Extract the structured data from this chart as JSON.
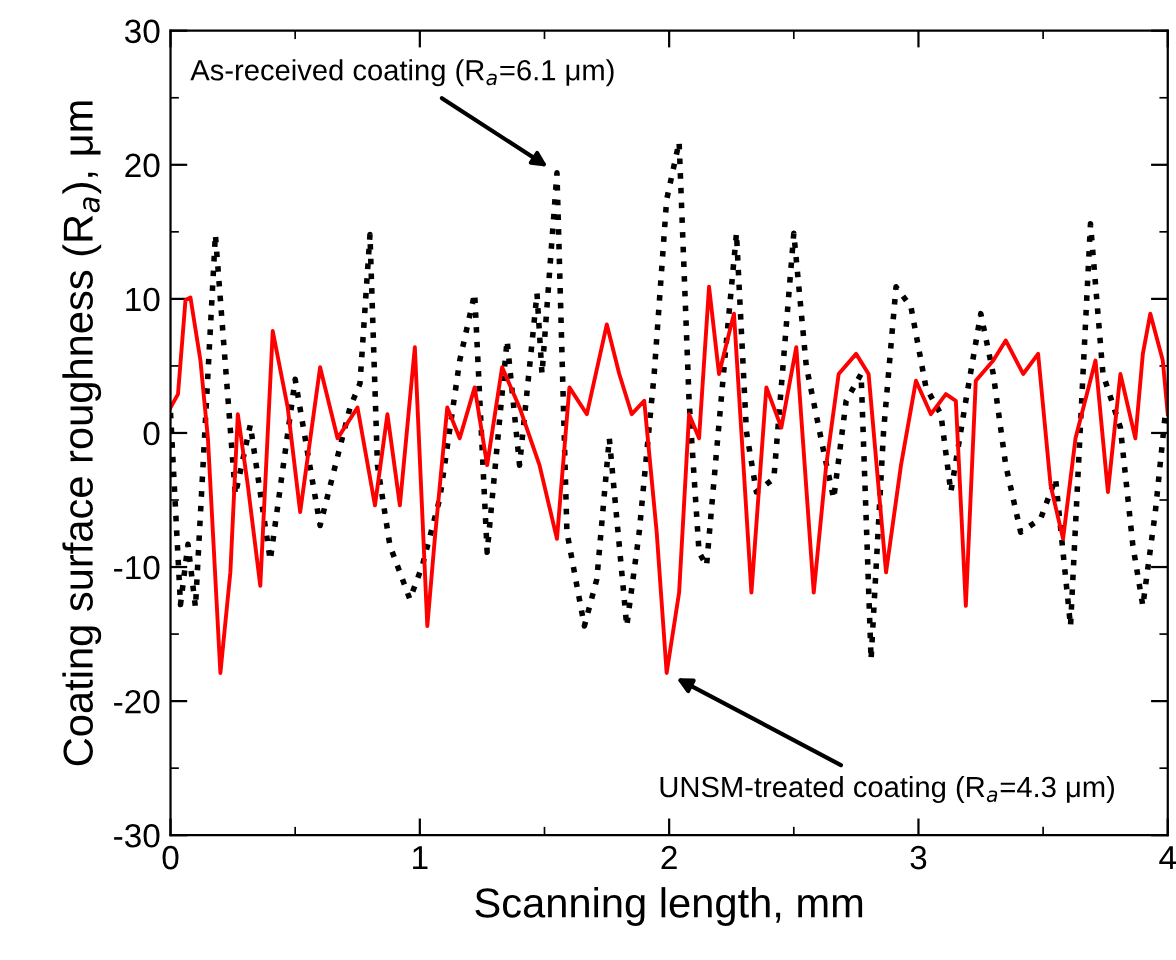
{
  "chart_data": {
    "type": "line",
    "xlabel": "Scanning length, mm",
    "ylabel": "Coating surface roughness (R$_{a}$), μm",
    "xlim": [
      0,
      4
    ],
    "ylim": [
      -30,
      30
    ],
    "xticks": [
      0,
      1,
      2,
      3,
      4
    ],
    "yticks": [
      -30,
      -20,
      -10,
      0,
      10,
      20,
      30
    ],
    "grid": false,
    "legend": false,
    "annotations": [
      {
        "text": "As-received coating (R$_{a}$=6.1 μm)",
        "x": 1.55,
        "y": 19.4
      },
      {
        "text": "UNSM-treated coating (R$_{a}$=4.3 μm)",
        "x": 1.99,
        "y": -17.9
      }
    ],
    "series": [
      {
        "color": "#000000",
        "line_style": "dotted",
        "x": [
          0.0,
          0.04,
          0.07,
          0.1,
          0.18,
          0.26,
          0.32,
          0.4,
          0.5,
          0.55,
          0.6,
          0.72,
          0.76,
          0.8,
          0.83,
          0.88,
          0.96,
          1.01,
          1.08,
          1.16,
          1.22,
          1.27,
          1.35,
          1.4,
          1.47,
          1.49,
          1.55,
          1.59,
          1.66,
          1.71,
          1.76,
          1.83,
          1.88,
          1.94,
          1.99,
          2.04,
          2.08,
          2.12,
          2.15,
          2.19,
          2.23,
          2.27,
          2.31,
          2.35,
          2.42,
          2.5,
          2.55,
          2.62,
          2.66,
          2.71,
          2.77,
          2.81,
          2.86,
          2.91,
          2.97,
          3.03,
          3.09,
          3.13,
          3.19,
          3.25,
          3.3,
          3.35,
          3.41,
          3.49,
          3.55,
          3.61,
          3.66,
          3.69,
          3.74,
          3.81,
          3.86,
          3.9,
          3.95,
          3.99
        ],
        "values": [
          1.5,
          -12.8,
          -8.3,
          -13.0,
          14.8,
          -4.6,
          0.6,
          -9.5,
          4.0,
          -1.5,
          -6.9,
          1.9,
          3.7,
          14.8,
          -2.4,
          -8.4,
          -12.4,
          -9.9,
          -4.9,
          5.4,
          10.4,
          -8.9,
          6.9,
          -2.4,
          10.4,
          4.4,
          19.4,
          -7.4,
          -14.4,
          -10.9,
          -0.4,
          -14.4,
          -7.4,
          4.4,
          17.4,
          21.7,
          2.4,
          -8.9,
          -9.9,
          -1.4,
          6.9,
          14.9,
          0.1,
          -4.4,
          -3.4,
          14.9,
          5.0,
          -1.4,
          -4.9,
          2.4,
          4.4,
          -16.9,
          0.1,
          10.9,
          9.4,
          3.4,
          1.4,
          -4.4,
          2.4,
          8.9,
          4.4,
          -2.4,
          -7.4,
          -6.4,
          -3.4,
          -14.4,
          4.4,
          15.6,
          4.4,
          0.4,
          -8.4,
          -12.9,
          -5.9,
          1.4
        ]
      },
      {
        "color": "#ff0000",
        "line_style": "solid",
        "x": [
          0.0,
          0.03,
          0.06,
          0.08,
          0.12,
          0.15,
          0.2,
          0.24,
          0.27,
          0.31,
          0.36,
          0.41,
          0.47,
          0.52,
          0.6,
          0.67,
          0.75,
          0.82,
          0.87,
          0.92,
          0.98,
          1.03,
          1.06,
          1.11,
          1.16,
          1.22,
          1.27,
          1.33,
          1.4,
          1.48,
          1.55,
          1.6,
          1.67,
          1.75,
          1.8,
          1.85,
          1.9,
          1.95,
          1.99,
          2.04,
          2.08,
          2.12,
          2.16,
          2.2,
          2.26,
          2.33,
          2.39,
          2.45,
          2.51,
          2.58,
          2.63,
          2.68,
          2.75,
          2.8,
          2.87,
          2.93,
          2.99,
          3.05,
          3.11,
          3.15,
          3.19,
          3.23,
          3.3,
          3.35,
          3.42,
          3.48,
          3.53,
          3.58,
          3.63,
          3.71,
          3.76,
          3.81,
          3.87,
          3.9,
          3.93,
          3.98,
          4.0
        ],
        "values": [
          1.9,
          2.9,
          9.9,
          10.1,
          5.4,
          -0.4,
          -17.9,
          -10.4,
          1.4,
          -3.9,
          -11.4,
          7.6,
          1.9,
          -5.9,
          4.9,
          -0.4,
          1.9,
          -5.4,
          1.4,
          -5.4,
          6.4,
          -14.4,
          -7.9,
          1.9,
          -0.4,
          3.4,
          -2.4,
          4.9,
          1.9,
          -2.4,
          -7.9,
          3.4,
          1.4,
          8.1,
          4.4,
          1.4,
          2.4,
          -7.4,
          -17.9,
          -11.9,
          1.4,
          -0.4,
          10.9,
          4.4,
          8.9,
          -11.9,
          3.4,
          0.4,
          6.4,
          -11.9,
          -2.4,
          4.4,
          5.9,
          4.4,
          -10.4,
          -2.4,
          3.9,
          1.4,
          2.9,
          2.4,
          -12.9,
          3.9,
          5.4,
          6.9,
          4.4,
          5.9,
          -3.9,
          -7.9,
          -0.4,
          5.4,
          -4.4,
          4.4,
          -0.4,
          5.9,
          8.9,
          5.4,
          1.4
        ]
      }
    ]
  }
}
